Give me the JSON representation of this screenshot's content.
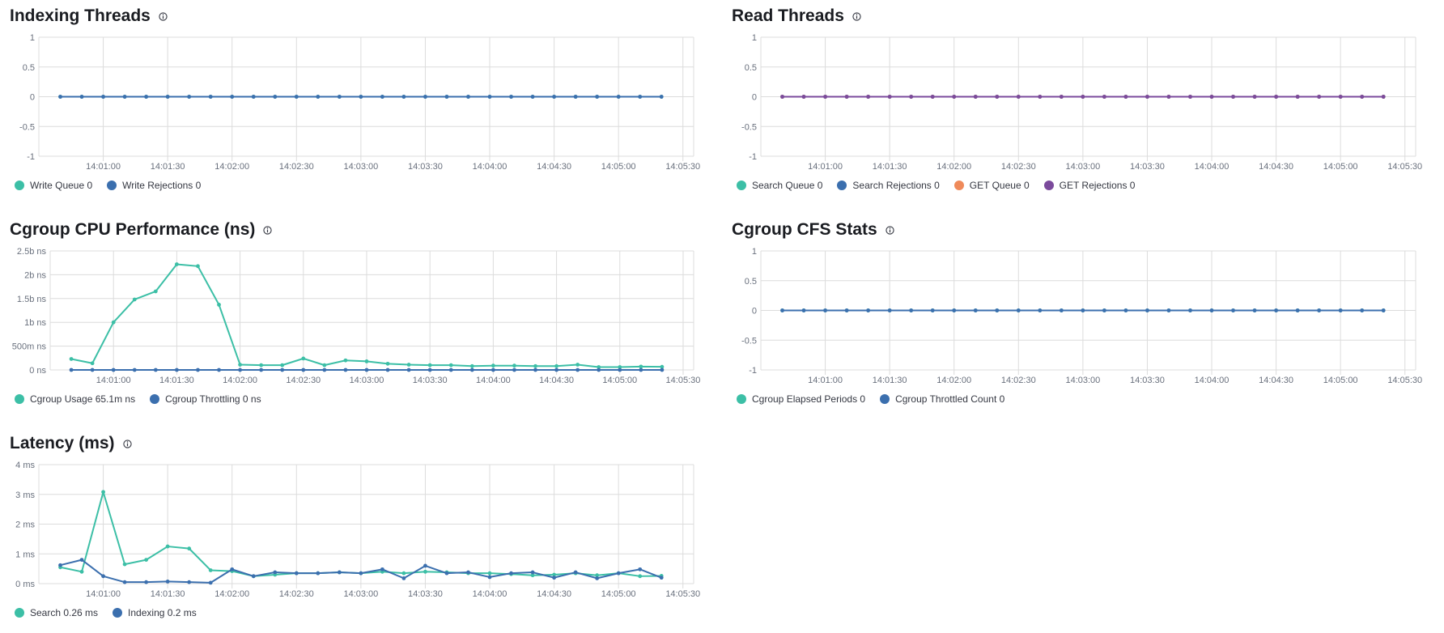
{
  "panels": [
    {
      "id": "indexing",
      "title": "Indexing Threads",
      "legend": [
        {
          "label": "Write Queue 0",
          "color": "#3cbfa6"
        },
        {
          "label": "Write Rejections 0",
          "color": "#3b6fae"
        }
      ]
    },
    {
      "id": "read",
      "title": "Read Threads",
      "legend": [
        {
          "label": "Search Queue 0",
          "color": "#3cbfa6"
        },
        {
          "label": "Search Rejections 0",
          "color": "#3b6fae"
        },
        {
          "label": "GET Queue 0",
          "color": "#ef8a5a"
        },
        {
          "label": "GET Rejections 0",
          "color": "#7b4a9c"
        }
      ]
    },
    {
      "id": "cpu",
      "title": "Cgroup CPU Performance (ns)",
      "legend": [
        {
          "label": "Cgroup Usage 65.1m ns",
          "color": "#3cbfa6"
        },
        {
          "label": "Cgroup Throttling 0 ns",
          "color": "#3b6fae"
        }
      ]
    },
    {
      "id": "cfs",
      "title": "Cgroup CFS Stats",
      "legend": [
        {
          "label": "Cgroup Elapsed Periods 0",
          "color": "#3cbfa6"
        },
        {
          "label": "Cgroup Throttled Count 0",
          "color": "#3b6fae"
        }
      ]
    },
    {
      "id": "latency",
      "title": "Latency (ms)",
      "legend": [
        {
          "label": "Search 0.26 ms",
          "color": "#3cbfa6"
        },
        {
          "label": "Indexing 0.2 ms",
          "color": "#3b6fae"
        }
      ]
    }
  ],
  "chart_data": [
    {
      "id": "indexing",
      "type": "line",
      "title": "Indexing Threads",
      "x_ticks": [
        "14:01:00",
        "14:01:30",
        "14:02:00",
        "14:02:30",
        "14:03:00",
        "14:03:30",
        "14:04:00",
        "14:04:30",
        "14:05:00",
        "14:05:30"
      ],
      "x_start": "14:00:40",
      "x_step_seconds": 10,
      "y_ticks": [
        "1",
        "0.5",
        "0",
        "-0.5",
        "-1"
      ],
      "ylim": [
        -1,
        1
      ],
      "grid": true,
      "series": [
        {
          "name": "Write Queue",
          "color": "#3cbfa6",
          "values": [
            0,
            0,
            0,
            0,
            0,
            0,
            0,
            0,
            0,
            0,
            0,
            0,
            0,
            0,
            0,
            0,
            0,
            0,
            0,
            0,
            0,
            0,
            0,
            0,
            0,
            0,
            0,
            0,
            0
          ]
        },
        {
          "name": "Write Rejections",
          "color": "#3b6fae",
          "values": [
            0,
            0,
            0,
            0,
            0,
            0,
            0,
            0,
            0,
            0,
            0,
            0,
            0,
            0,
            0,
            0,
            0,
            0,
            0,
            0,
            0,
            0,
            0,
            0,
            0,
            0,
            0,
            0,
            0
          ]
        }
      ]
    },
    {
      "id": "read",
      "type": "line",
      "title": "Read Threads",
      "x_ticks": [
        "14:01:00",
        "14:01:30",
        "14:02:00",
        "14:02:30",
        "14:03:00",
        "14:03:30",
        "14:04:00",
        "14:04:30",
        "14:05:00",
        "14:05:30"
      ],
      "x_start": "14:00:40",
      "x_step_seconds": 10,
      "y_ticks": [
        "1",
        "0.5",
        "0",
        "-0.5",
        "-1"
      ],
      "ylim": [
        -1,
        1
      ],
      "grid": true,
      "series": [
        {
          "name": "Search Queue",
          "color": "#3cbfa6",
          "values": [
            0,
            0,
            0,
            0,
            0,
            0,
            0,
            0,
            0,
            0,
            0,
            0,
            0,
            0,
            0,
            0,
            0,
            0,
            0,
            0,
            0,
            0,
            0,
            0,
            0,
            0,
            0,
            0,
            0
          ]
        },
        {
          "name": "Search Rejections",
          "color": "#3b6fae",
          "values": [
            0,
            0,
            0,
            0,
            0,
            0,
            0,
            0,
            0,
            0,
            0,
            0,
            0,
            0,
            0,
            0,
            0,
            0,
            0,
            0,
            0,
            0,
            0,
            0,
            0,
            0,
            0,
            0,
            0
          ]
        },
        {
          "name": "GET Queue",
          "color": "#ef8a5a",
          "values": [
            0,
            0,
            0,
            0,
            0,
            0,
            0,
            0,
            0,
            0,
            0,
            0,
            0,
            0,
            0,
            0,
            0,
            0,
            0,
            0,
            0,
            0,
            0,
            0,
            0,
            0,
            0,
            0,
            0
          ]
        },
        {
          "name": "GET Rejections",
          "color": "#7b4a9c",
          "values": [
            0,
            0,
            0,
            0,
            0,
            0,
            0,
            0,
            0,
            0,
            0,
            0,
            0,
            0,
            0,
            0,
            0,
            0,
            0,
            0,
            0,
            0,
            0,
            0,
            0,
            0,
            0,
            0,
            0
          ]
        }
      ]
    },
    {
      "id": "cpu",
      "type": "line",
      "title": "Cgroup CPU Performance (ns)",
      "x_ticks": [
        "14:01:00",
        "14:01:30",
        "14:02:00",
        "14:02:30",
        "14:03:00",
        "14:03:30",
        "14:04:00",
        "14:04:30",
        "14:05:00",
        "14:05:30"
      ],
      "x_start": "14:00:40",
      "x_step_seconds": 10,
      "y_ticks": [
        "2.5b ns",
        "2b ns",
        "1.5b ns",
        "1b ns",
        "500m ns",
        "0 ns"
      ],
      "ylim": [
        0,
        2500000000
      ],
      "grid": true,
      "series": [
        {
          "name": "Cgroup Usage",
          "color": "#3cbfa6",
          "values": [
            230000000,
            140000000,
            1000000000,
            1480000000,
            1650000000,
            2220000000,
            2180000000,
            1370000000,
            110000000,
            100000000,
            100000000,
            240000000,
            100000000,
            200000000,
            180000000,
            130000000,
            110000000,
            100000000,
            100000000,
            80000000,
            90000000,
            90000000,
            80000000,
            80000000,
            110000000,
            60000000,
            60000000,
            70000000,
            65100000
          ]
        },
        {
          "name": "Cgroup Throttling",
          "color": "#3b6fae",
          "values": [
            0,
            0,
            0,
            0,
            0,
            0,
            0,
            0,
            0,
            0,
            0,
            0,
            0,
            0,
            0,
            0,
            0,
            0,
            0,
            0,
            0,
            0,
            0,
            0,
            0,
            0,
            0,
            0,
            0
          ]
        }
      ]
    },
    {
      "id": "cfs",
      "type": "line",
      "title": "Cgroup CFS Stats",
      "x_ticks": [
        "14:01:00",
        "14:01:30",
        "14:02:00",
        "14:02:30",
        "14:03:00",
        "14:03:30",
        "14:04:00",
        "14:04:30",
        "14:05:00",
        "14:05:30"
      ],
      "x_start": "14:00:40",
      "x_step_seconds": 10,
      "y_ticks": [
        "1",
        "0.5",
        "0",
        "-0.5",
        "-1"
      ],
      "ylim": [
        -1,
        1
      ],
      "grid": true,
      "series": [
        {
          "name": "Cgroup Elapsed Periods",
          "color": "#3cbfa6",
          "values": [
            0,
            0,
            0,
            0,
            0,
            0,
            0,
            0,
            0,
            0,
            0,
            0,
            0,
            0,
            0,
            0,
            0,
            0,
            0,
            0,
            0,
            0,
            0,
            0,
            0,
            0,
            0,
            0,
            0
          ]
        },
        {
          "name": "Cgroup Throttled Count",
          "color": "#3b6fae",
          "values": [
            0,
            0,
            0,
            0,
            0,
            0,
            0,
            0,
            0,
            0,
            0,
            0,
            0,
            0,
            0,
            0,
            0,
            0,
            0,
            0,
            0,
            0,
            0,
            0,
            0,
            0,
            0,
            0,
            0
          ]
        }
      ]
    },
    {
      "id": "latency",
      "type": "line",
      "title": "Latency (ms)",
      "x_ticks": [
        "14:01:00",
        "14:01:30",
        "14:02:00",
        "14:02:30",
        "14:03:00",
        "14:03:30",
        "14:04:00",
        "14:04:30",
        "14:05:00",
        "14:05:30"
      ],
      "x_start": "14:00:40",
      "x_step_seconds": 10,
      "y_ticks": [
        "4 ms",
        "3 ms",
        "2 ms",
        "1 ms",
        "0 ms"
      ],
      "ylim": [
        0,
        4
      ],
      "grid": true,
      "series": [
        {
          "name": "Search",
          "color": "#3cbfa6",
          "values": [
            0.55,
            0.4,
            3.08,
            0.65,
            0.8,
            1.25,
            1.18,
            0.45,
            0.42,
            0.25,
            0.3,
            0.35,
            0.35,
            0.38,
            0.35,
            0.4,
            0.35,
            0.4,
            0.38,
            0.35,
            0.35,
            0.32,
            0.28,
            0.3,
            0.35,
            0.28,
            0.35,
            0.25,
            0.26
          ]
        },
        {
          "name": "Indexing",
          "color": "#3b6fae",
          "values": [
            0.62,
            0.8,
            0.25,
            0.05,
            0.05,
            0.07,
            0.05,
            0.03,
            0.48,
            0.25,
            0.38,
            0.35,
            0.35,
            0.38,
            0.35,
            0.48,
            0.18,
            0.6,
            0.35,
            0.38,
            0.22,
            0.35,
            0.38,
            0.2,
            0.38,
            0.18,
            0.35,
            0.48,
            0.2
          ]
        }
      ]
    }
  ]
}
